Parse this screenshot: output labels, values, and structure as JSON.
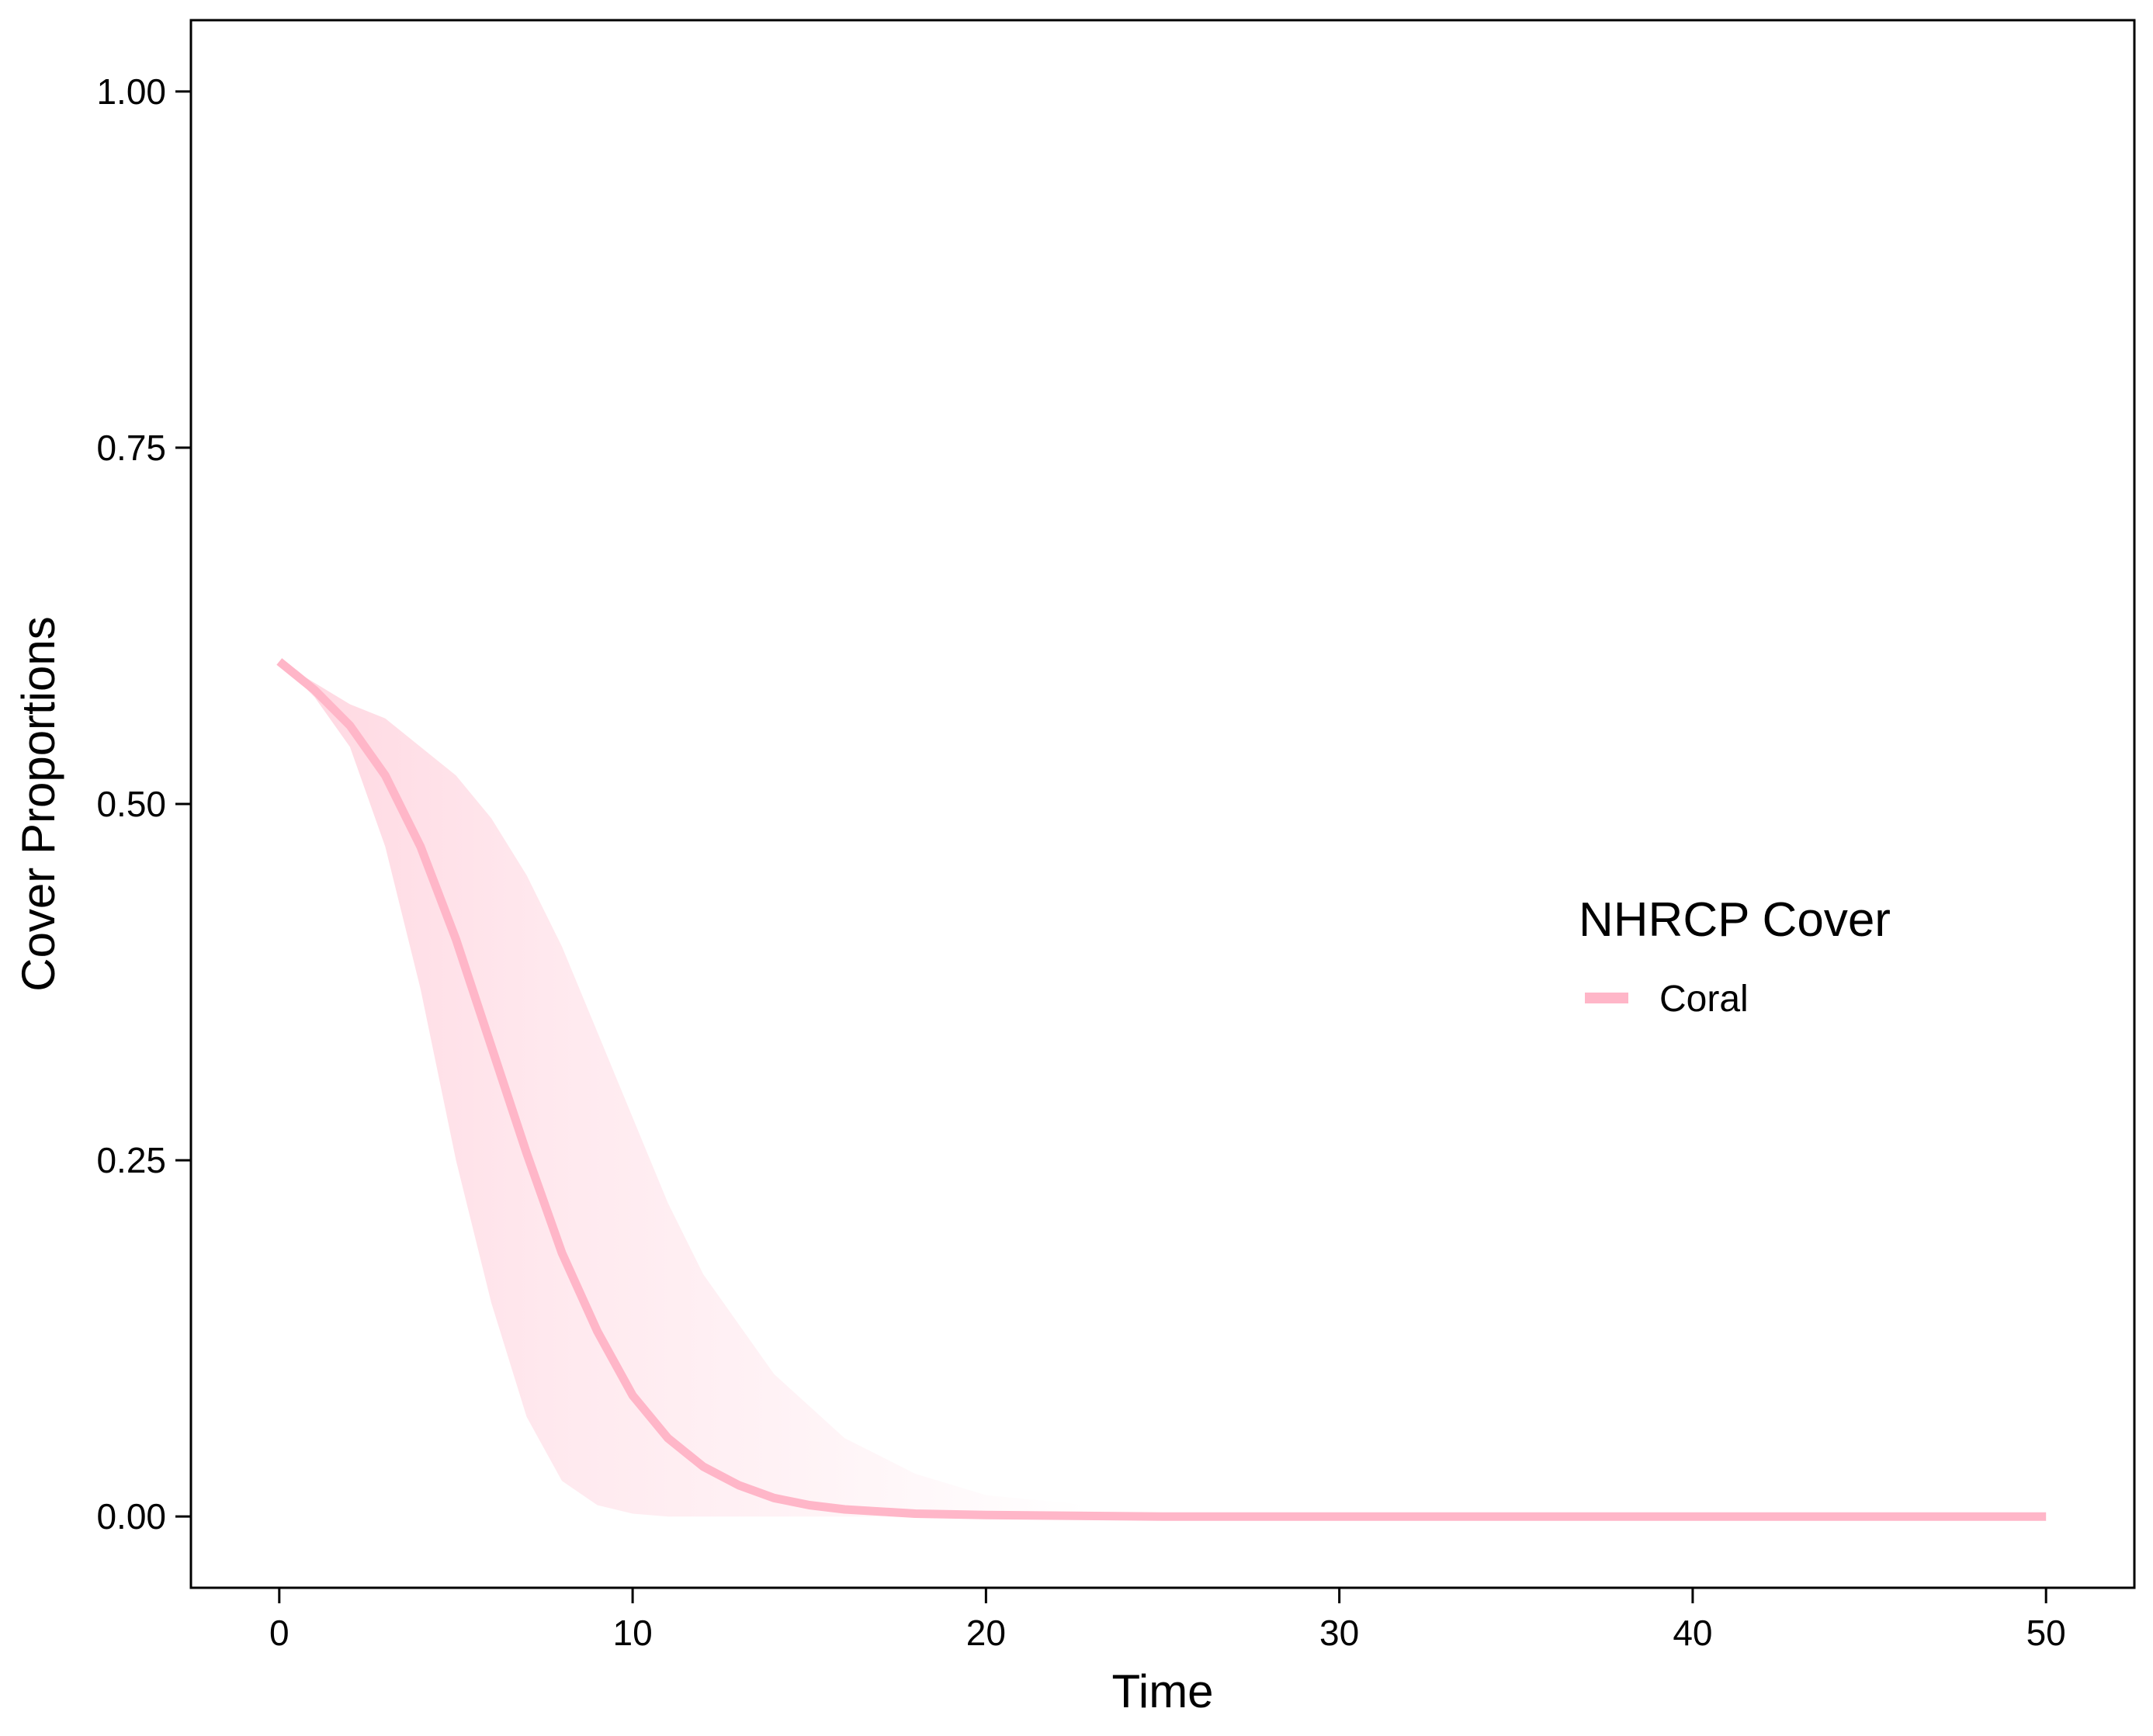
{
  "chart_data": {
    "type": "line",
    "title": "",
    "xlabel": "Time",
    "ylabel": "Cover Proportions",
    "xlim": [
      -2.5,
      52.5
    ],
    "ylim": [
      -0.05,
      1.05
    ],
    "x_ticks": [
      0,
      10,
      20,
      30,
      40,
      50
    ],
    "x_tick_labels": [
      "0",
      "10",
      "20",
      "30",
      "40",
      "50"
    ],
    "y_ticks": [
      0,
      0.25,
      0.5,
      0.75,
      1.0
    ],
    "y_tick_labels": [
      "0.00",
      "0.25",
      "0.50",
      "0.75",
      "1.00"
    ],
    "grid": false,
    "legend": {
      "title": "NHRCP Cover",
      "position": "right",
      "entries": [
        {
          "label": "Coral",
          "color": "#ffb6c8"
        }
      ]
    },
    "series": [
      {
        "name": "Coral",
        "color": "#ffb6c8",
        "x": [
          0,
          1,
          2,
          3,
          4,
          5,
          6,
          7,
          8,
          9,
          10,
          11,
          12,
          13,
          14,
          15,
          16,
          18,
          20,
          25,
          30,
          35,
          40,
          45,
          50
        ],
        "y": [
          0.6,
          0.58,
          0.555,
          0.52,
          0.47,
          0.405,
          0.33,
          0.255,
          0.185,
          0.13,
          0.085,
          0.055,
          0.035,
          0.022,
          0.013,
          0.008,
          0.005,
          0.002,
          0.001,
          0.0,
          0.0,
          0.0,
          0.0,
          0.0,
          0.0
        ]
      }
    ],
    "uncertainty_band": {
      "color": "#ffb6c8",
      "x": [
        0,
        1,
        2,
        3,
        4,
        5,
        6,
        7,
        8,
        9,
        10,
        11,
        12,
        14,
        16,
        18,
        20,
        25,
        50
      ],
      "lower": [
        0.6,
        0.575,
        0.54,
        0.47,
        0.37,
        0.25,
        0.15,
        0.07,
        0.025,
        0.008,
        0.002,
        0.0,
        0.0,
        0.0,
        0.0,
        0.0,
        0.0,
        0.0,
        0.0
      ],
      "upper": [
        0.6,
        0.585,
        0.57,
        0.56,
        0.54,
        0.52,
        0.49,
        0.45,
        0.4,
        0.34,
        0.28,
        0.22,
        0.17,
        0.1,
        0.055,
        0.03,
        0.015,
        0.003,
        0.0
      ]
    }
  }
}
